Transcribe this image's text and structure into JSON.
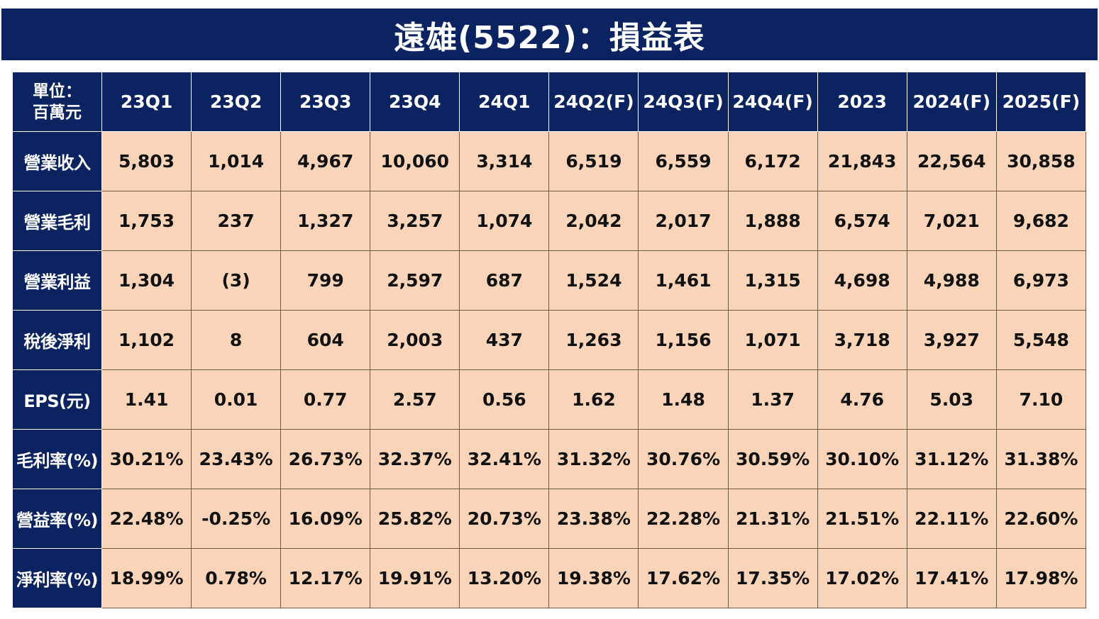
{
  "title": "遠雄(5522)：損益表",
  "table": {
    "corner_label_line1": "單位：",
    "corner_label_line2": "百萬元",
    "columns": [
      "23Q1",
      "23Q2",
      "23Q3",
      "23Q4",
      "24Q1",
      "24Q2(F)",
      "24Q3(F)",
      "24Q4(F)",
      "2023",
      "2024(F)",
      "2025(F)"
    ],
    "rows": [
      {
        "label": "營業收入",
        "values": [
          "5,803",
          "1,014",
          "4,967",
          "10,060",
          "3,314",
          "6,519",
          "6,559",
          "6,172",
          "21,843",
          "22,564",
          "30,858"
        ]
      },
      {
        "label": "營業毛利",
        "values": [
          "1,753",
          "237",
          "1,327",
          "3,257",
          "1,074",
          "2,042",
          "2,017",
          "1,888",
          "6,574",
          "7,021",
          "9,682"
        ]
      },
      {
        "label": "營業利益",
        "values": [
          "1,304",
          "(3)",
          "799",
          "2,597",
          "687",
          "1,524",
          "1,461",
          "1,315",
          "4,698",
          "4,988",
          "6,973"
        ]
      },
      {
        "label": "稅後淨利",
        "values": [
          "1,102",
          "8",
          "604",
          "2,003",
          "437",
          "1,263",
          "1,156",
          "1,071",
          "3,718",
          "3,927",
          "5,548"
        ]
      },
      {
        "label": "EPS(元)",
        "values": [
          "1.41",
          "0.01",
          "0.77",
          "2.57",
          "0.56",
          "1.62",
          "1.48",
          "1.37",
          "4.76",
          "5.03",
          "7.10"
        ]
      },
      {
        "label": "毛利率(%)",
        "values": [
          "30.21%",
          "23.43%",
          "26.73%",
          "32.37%",
          "32.41%",
          "31.32%",
          "30.76%",
          "30.59%",
          "30.10%",
          "31.12%",
          "31.38%"
        ]
      },
      {
        "label": "營益率(%)",
        "values": [
          "22.48%",
          "-0.25%",
          "16.09%",
          "25.82%",
          "20.73%",
          "23.38%",
          "22.28%",
          "21.31%",
          "21.51%",
          "22.11%",
          "22.60%"
        ]
      },
      {
        "label": "淨利率(%)",
        "values": [
          "18.99%",
          "0.78%",
          "12.17%",
          "19.91%",
          "13.20%",
          "19.38%",
          "17.62%",
          "17.35%",
          "17.02%",
          "17.41%",
          "17.98%"
        ]
      }
    ]
  },
  "colors": {
    "header_bg": "#0b2360",
    "cell_bg": "#f9d4b8",
    "header_text": "#ffffff",
    "cell_text": "#111111"
  }
}
